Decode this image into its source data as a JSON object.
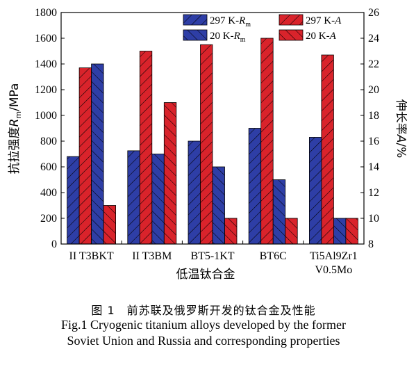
{
  "chart_data": {
    "type": "bar",
    "categories": [
      "II T3BKT",
      "II T3BM",
      "BT5-1KT",
      "BT6C",
      "Ti5Al9Zr1\nV0.5Mo"
    ],
    "xlabel": "低温钛合金",
    "ylabel": "抗拉强度R_m/MPa",
    "y2label": "伸长率A/%",
    "ylim": [
      0,
      1800
    ],
    "y2lim": [
      8,
      26
    ],
    "yticks": [
      0,
      200,
      400,
      600,
      800,
      1000,
      1200,
      1400,
      1600,
      1800
    ],
    "y2ticks": [
      8,
      10,
      12,
      14,
      16,
      18,
      20,
      22,
      24,
      26
    ],
    "legend_position": "top-right",
    "grid": false,
    "series": [
      {
        "name": "297 K-Rm",
        "axis": "left",
        "color": "#2e3ea6",
        "hatch": "diagonal-up",
        "values": [
          680,
          725,
          800,
          900,
          830
        ]
      },
      {
        "name": "297 K-A",
        "axis": "right",
        "color": "#d9232b",
        "hatch": "diagonal-up",
        "values": [
          21.7,
          23,
          23.5,
          24,
          22.7
        ]
      },
      {
        "name": "20 K-Rm",
        "axis": "left",
        "color": "#2e3ea6",
        "hatch": "diagonal-down",
        "values": [
          1400,
          700,
          600,
          500,
          200
        ]
      },
      {
        "name": "20 K-A",
        "axis": "right",
        "color": "#d9232b",
        "hatch": "diagonal-down",
        "values": [
          11,
          19,
          10,
          10,
          10
        ]
      }
    ]
  },
  "caption": {
    "cn": "图 1　前苏联及俄罗斯开发的钛合金及性能",
    "en_line1": "Fig.1 Cryogenic titanium alloys developed by the former",
    "en_line2": "Soviet Union and Russia and corresponding properties"
  }
}
